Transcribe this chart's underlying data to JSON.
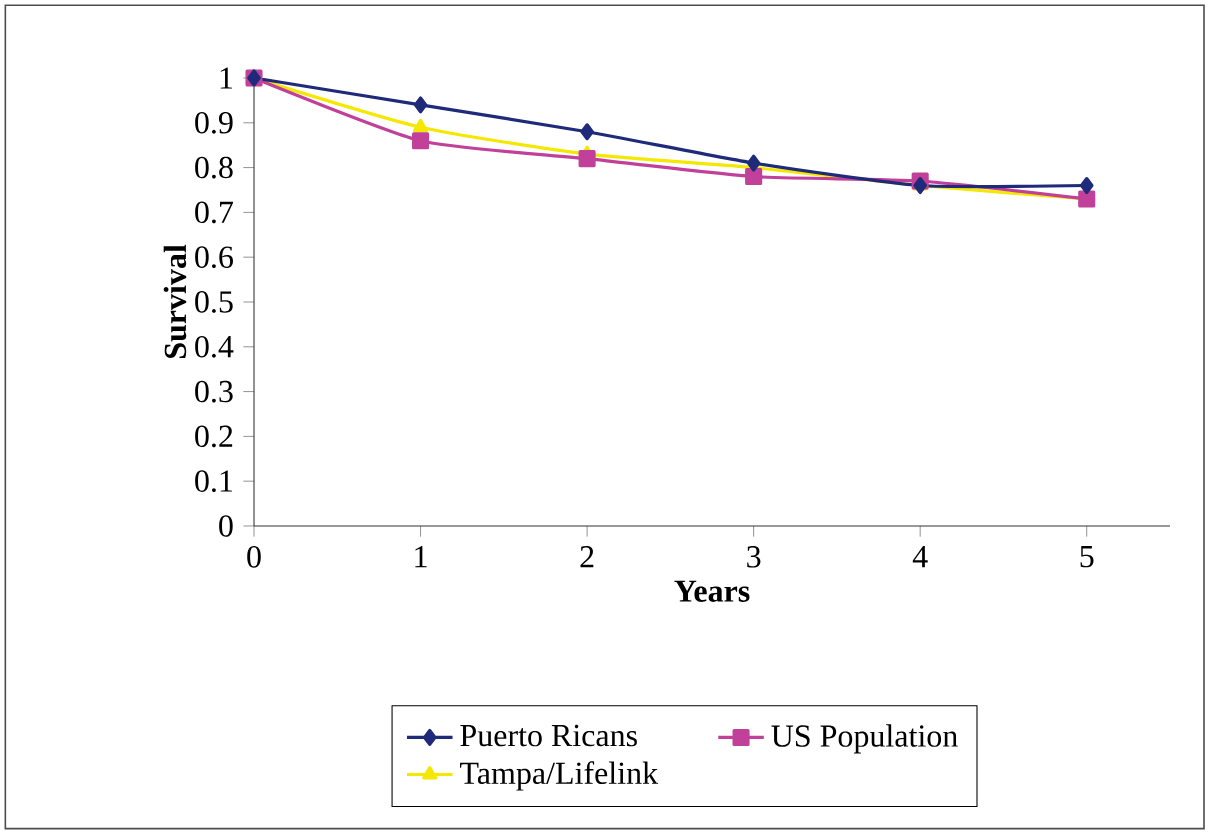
{
  "chart_data": {
    "type": "line",
    "xlabel": "Years",
    "ylabel": "Survival",
    "x": [
      0,
      1,
      2,
      3,
      4,
      5
    ],
    "xlim": [
      0,
      5.5
    ],
    "xticks": [
      0,
      1,
      2,
      3,
      4,
      5
    ],
    "ylim": [
      0,
      1
    ],
    "yticks": [
      0,
      0.1,
      0.2,
      0.3,
      0.4,
      0.5,
      0.6,
      0.7,
      0.8,
      0.9,
      1
    ],
    "legend": "bottom",
    "series": [
      {
        "name": "Puerto Ricans",
        "color": "#1f2a7a",
        "marker": "diamond",
        "values": [
          1,
          0.94,
          0.88,
          0.81,
          0.76,
          0.76
        ]
      },
      {
        "name": "US Population",
        "color": "#c0409a",
        "marker": "square",
        "values": [
          1,
          0.86,
          0.82,
          0.78,
          0.77,
          0.73
        ]
      },
      {
        "name": "Tampa/Lifelink",
        "color": "#f5e800",
        "marker": "triangle",
        "values": [
          1,
          0.89,
          0.83,
          0.8,
          0.76,
          0.73
        ]
      }
    ]
  }
}
